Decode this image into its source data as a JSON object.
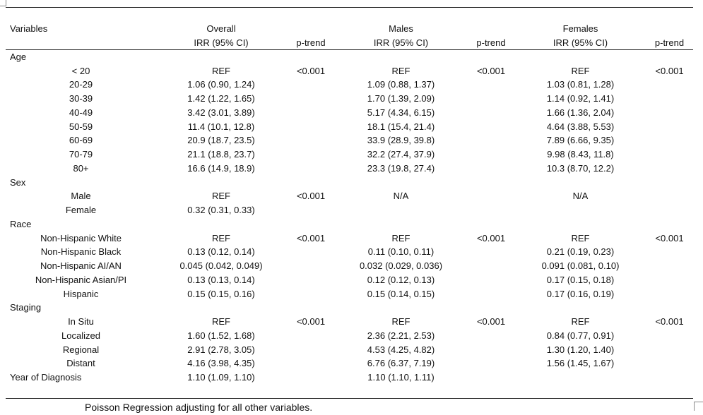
{
  "header": {
    "variables": "Variables",
    "overall": "Overall",
    "males": "Males",
    "females": "Females",
    "irr": "IRR (95% CI)",
    "ptrend": "p-trend"
  },
  "sections": [
    {
      "label": "Age",
      "rows": [
        {
          "label": "< 20",
          "overall": "REF",
          "p_overall": "<0.001",
          "males": "REF",
          "p_males": "<0.001",
          "females": "REF",
          "p_females": "<0.001"
        },
        {
          "label": "20-29",
          "overall": "1.06 (0.90, 1.24)",
          "p_overall": "",
          "males": "1.09 (0.88, 1.37)",
          "p_males": "",
          "females": "1.03 (0.81, 1.28)",
          "p_females": ""
        },
        {
          "label": "30-39",
          "overall": "1.42 (1.22, 1.65)",
          "p_overall": "",
          "males": "1.70 (1.39, 2.09)",
          "p_males": "",
          "females": "1.14 (0.92, 1.41)",
          "p_females": ""
        },
        {
          "label": "40-49",
          "overall": "3.42 (3.01, 3.89)",
          "p_overall": "",
          "males": "5.17 (4.34, 6.15)",
          "p_males": "",
          "females": "1.66 (1.36, 2.04)",
          "p_females": ""
        },
        {
          "label": "50-59",
          "overall": "11.4 (10.1, 12.8)",
          "p_overall": "",
          "males": "18.1 (15.4, 21.4)",
          "p_males": "",
          "females": "4.64 (3.88, 5.53)",
          "p_females": ""
        },
        {
          "label": "60-69",
          "overall": "20.9 (18.7, 23.5)",
          "p_overall": "",
          "males": "33.9 (28.9, 39.8)",
          "p_males": "",
          "females": "7.89 (6.66, 9.35)",
          "p_females": ""
        },
        {
          "label": "70-79",
          "overall": "21.1 (18.8, 23.7)",
          "p_overall": "",
          "males": "32.2 (27.4, 37.9)",
          "p_males": "",
          "females": "9.98 (8.43, 11.8)",
          "p_females": ""
        },
        {
          "label": "80+",
          "overall": "16.6 (14.9, 18.9)",
          "p_overall": "",
          "males": "23.3 (19.8, 27.4)",
          "p_males": "",
          "females": "10.3 (8.70, 12.2)",
          "p_females": ""
        }
      ]
    },
    {
      "label": "Sex",
      "rows": [
        {
          "label": "Male",
          "overall": "REF",
          "p_overall": "<0.001",
          "males": "N/A",
          "p_males": "",
          "females": "N/A",
          "p_females": ""
        },
        {
          "label": "Female",
          "overall": "0.32 (0.31, 0.33)",
          "p_overall": "",
          "males": "",
          "p_males": "",
          "females": "",
          "p_females": ""
        }
      ]
    },
    {
      "label": "Race",
      "rows": [
        {
          "label": "Non-Hispanic White",
          "overall": "REF",
          "p_overall": "<0.001",
          "males": "REF",
          "p_males": "<0.001",
          "females": "REF",
          "p_females": "<0.001"
        },
        {
          "label": "Non-Hispanic Black",
          "overall": "0.13 (0.12, 0.14)",
          "p_overall": "",
          "males": "0.11 (0.10, 0.11)",
          "p_males": "",
          "females": "0.21 (0.19, 0.23)",
          "p_females": ""
        },
        {
          "label": "Non-Hispanic AI/AN",
          "overall": "0.045 (0.042, 0.049)",
          "p_overall": "",
          "males": "0.032 (0.029, 0.036)",
          "p_males": "",
          "females": "0.091 (0.081, 0.10)",
          "p_females": ""
        },
        {
          "label": "Non-Hispanic Asian/PI",
          "overall": "0.13 (0.13, 0.14)",
          "p_overall": "",
          "males": "0.12 (0.12, 0.13)",
          "p_males": "",
          "females": "0.17 (0.15, 0.18)",
          "p_females": ""
        },
        {
          "label": "Hispanic",
          "overall": "0.15 (0.15, 0.16)",
          "p_overall": "",
          "males": "0.15 (0.14, 0.15)",
          "p_males": "",
          "females": "0.17 (0.16, 0.19)",
          "p_females": ""
        }
      ]
    },
    {
      "label": "Staging",
      "rows": [
        {
          "label": "In Situ",
          "overall": "REF",
          "p_overall": "<0.001",
          "males": "REF",
          "p_males": "<0.001",
          "females": "REF",
          "p_females": "<0.001"
        },
        {
          "label": "Localized",
          "overall": "1.60 (1.52, 1.68)",
          "p_overall": "",
          "males": "2.36 (2.21, 2.53)",
          "p_males": "",
          "females": "0.84 (0.77, 0.91)",
          "p_females": ""
        },
        {
          "label": "Regional",
          "overall": "2.91 (2.78, 3.05)",
          "p_overall": "",
          "males": "4.53 (4.25, 4.82)",
          "p_males": "",
          "females": "1.30 (1.20, 1.40)",
          "p_females": ""
        },
        {
          "label": "Distant",
          "overall": "4.16 (3.98, 4.35)",
          "p_overall": "",
          "males": "6.76 (6.37, 7.19)",
          "p_males": "",
          "females": "1.56 (1.45, 1.67)",
          "p_females": ""
        }
      ]
    }
  ],
  "year_row": {
    "label": "Year of Diagnosis",
    "overall": "1.10 (1.09, 1.10)",
    "males": "1.10 (1.10, 1.11)",
    "females": ""
  },
  "footnote": "Poisson Regression adjusting for all other variables."
}
